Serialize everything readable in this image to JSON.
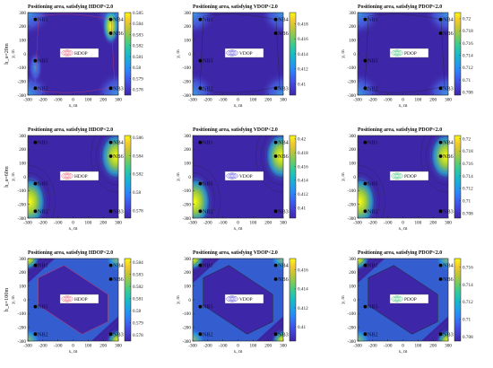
{
  "chart_data": {
    "type": "heatmap",
    "xlabel": "x, m",
    "ylabel": "y, m",
    "xlim": [
      -300,
      300
    ],
    "ylim": [
      -300,
      300
    ],
    "xticks": [
      -300,
      -200,
      -100,
      0,
      100,
      200,
      300
    ],
    "yticks": [
      -300,
      -200,
      -100,
      0,
      100,
      200,
      300
    ],
    "grid": false,
    "legend": "center",
    "node_labels": [
      "NB1",
      "NB2",
      "NB3",
      "NB4",
      "NB5",
      "NB6"
    ],
    "row_labels": [
      "h_a=20m",
      "h_a=60m",
      "h_a=100m"
    ],
    "nodes": [
      {
        "label": "NB1",
        "x": -250,
        "y": 250
      },
      {
        "label": "NB2",
        "x": -250,
        "y": -250
      },
      {
        "label": "NB3",
        "x": 250,
        "y": -250
      },
      {
        "label": "NB4",
        "x": 250,
        "y": 250
      },
      {
        "label": "NB5",
        "x": -250,
        "y": -50
      },
      {
        "label": "NB6",
        "x": 250,
        "y": 150
      }
    ],
    "panels": [
      {
        "row": 0,
        "col": 0,
        "metric": "HDOP",
        "title": "Positioning area, satisfying HDOP<2.0",
        "legend_label": "HDOP",
        "clim": [
          0.5775,
          0.585
        ],
        "colorbar_ticks": [
          0.578,
          0.579,
          0.58,
          0.581,
          0.582,
          0.583,
          0.584,
          0.585
        ],
        "node_labels": [
          "NB1",
          "NB2",
          "NB3",
          "NB4",
          "NB5",
          "NB6"
        ]
      },
      {
        "row": 0,
        "col": 1,
        "metric": "VDOP",
        "title": "Positioning area, satisfying VDOP<2.0",
        "legend_label": "VDOP",
        "clim": [
          0.4085,
          0.4195
        ],
        "colorbar_ticks": [
          0.41,
          0.412,
          0.414,
          0.416,
          0.418
        ],
        "node_labels": [
          "NB1",
          "NB2",
          "NB3",
          "NB4",
          "NB5",
          "NB6"
        ]
      },
      {
        "row": 0,
        "col": 2,
        "metric": "PDOP",
        "title": "Positioning area, satisfying PDOP<2.0",
        "legend_label": "PDOP",
        "clim": [
          0.7075,
          0.721
        ],
        "colorbar_ticks": [
          0.708,
          0.71,
          0.712,
          0.714,
          0.716,
          0.718,
          0.72
        ],
        "node_labels": [
          "NB1",
          "NB2",
          "NB3",
          "NB4",
          "NB5",
          "NB6"
        ]
      },
      {
        "row": 1,
        "col": 0,
        "metric": "HDOP",
        "title": "Positioning area, satisfying HDOP<2.0",
        "legend_label": "HDOP",
        "clim": [
          0.5772,
          0.5862
        ],
        "colorbar_ticks": [
          0.578,
          0.58,
          0.582,
          0.584,
          0.586
        ],
        "node_labels": [
          "NB1",
          "NB2",
          "NB3",
          "NB4",
          "NB5",
          "NB6"
        ]
      },
      {
        "row": 1,
        "col": 1,
        "metric": "VDOP",
        "title": "Positioning area, satisfying VDOP<2.0",
        "legend_label": "VDOP",
        "clim": [
          0.4085,
          0.4205
        ],
        "colorbar_ticks": [
          0.41,
          0.412,
          0.414,
          0.416,
          0.418,
          0.42
        ],
        "node_labels": [
          "NB1",
          "NB2",
          "NB3",
          "NB4",
          "NB5",
          "NB6"
        ]
      },
      {
        "row": 1,
        "col": 2,
        "metric": "PDOP",
        "title": "Positioning area, satisfying PDOP<2.0",
        "legend_label": "PDOP",
        "clim": [
          0.7072,
          0.7205
        ],
        "colorbar_ticks": [
          0.708,
          0.71,
          0.712,
          0.714,
          0.716,
          0.718,
          0.72
        ],
        "node_labels": [
          "NB1",
          "NB2",
          "NB3",
          "NB4",
          "NB5",
          "NB6"
        ]
      },
      {
        "row": 2,
        "col": 0,
        "metric": "HDOP",
        "title": "Positioning area, satisfying HDOP<2.0",
        "legend_label": "HDOP",
        "clim": [
          0.5775,
          0.5843
        ],
        "colorbar_ticks": [
          0.578,
          0.579,
          0.58,
          0.581,
          0.582,
          0.583,
          0.584
        ],
        "node_labels": [
          "NB1",
          "NB2",
          "NB3",
          "NB4",
          "NB5",
          "NB6"
        ]
      },
      {
        "row": 2,
        "col": 1,
        "metric": "VDOP",
        "title": "Positioning area, satisfying VDOP<2.0",
        "legend_label": "VDOP",
        "clim": [
          0.4085,
          0.4172
        ],
        "colorbar_ticks": [
          0.41,
          0.412,
          0.414,
          0.416
        ],
        "node_labels": [
          "NB1",
          "NB2",
          "NB3",
          "NB4",
          "NB5",
          "NB6"
        ]
      },
      {
        "row": 2,
        "col": 2,
        "metric": "PDOP",
        "title": "Positioning area, satisfying PDOP<2.0",
        "legend_label": "PDOP",
        "clim": [
          0.7075,
          0.717
        ],
        "colorbar_ticks": [
          0.708,
          0.71,
          0.712,
          0.714,
          0.716
        ],
        "node_labels": [
          "NB1",
          "NB2",
          "NB3",
          "NB4",
          "NB5",
          "NB6"
        ]
      }
    ],
    "colors": {
      "low": "#3e26a8",
      "mid": "#1fa0d6",
      "high": "#f9fb0e",
      "legend": {
        "HDOP": "#e8506a",
        "VDOP": "#4a3ad8",
        "PDOP": "#2bbf6a"
      }
    }
  }
}
